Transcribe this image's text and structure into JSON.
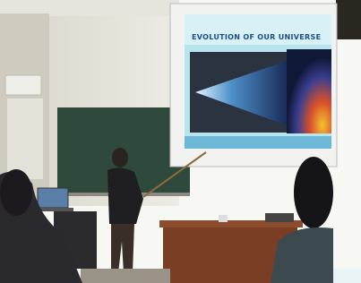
{
  "slide": {
    "title": "EVOLUTION OF OUR UNIVERSE"
  }
}
